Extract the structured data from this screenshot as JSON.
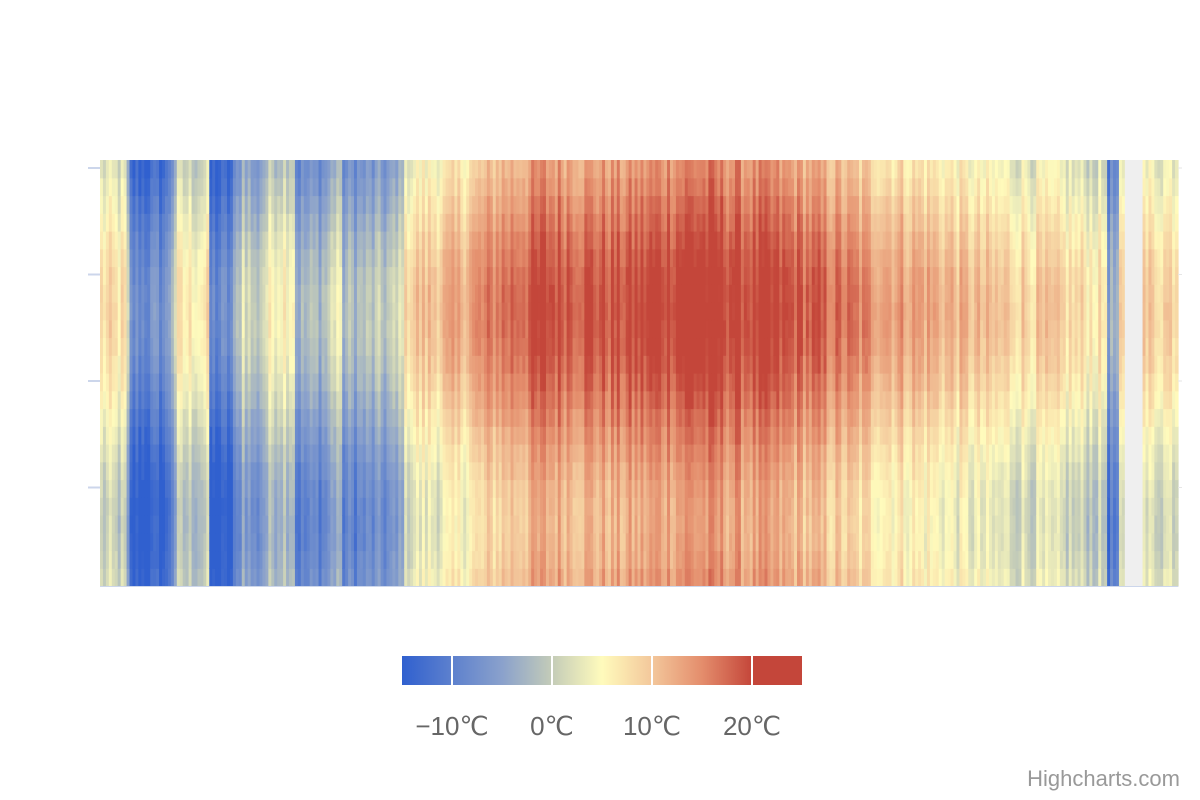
{
  "chart_data": {
    "type": "heatmap",
    "title": "",
    "xlabel": "",
    "ylabel": "",
    "x": {
      "start": 0,
      "end": 365,
      "unit": "day"
    },
    "y": {
      "start": 0,
      "end": 24,
      "unit": "hour"
    },
    "legend": {
      "position": "bottom-center",
      "tick_values": [
        -10,
        0,
        10,
        20
      ],
      "tick_labels": [
        "−10℃",
        "0℃",
        "10℃",
        "20℃"
      ],
      "min": -15,
      "max": 25
    },
    "color_stops": [
      {
        "value": -15,
        "color": "#3060cf"
      },
      {
        "value": -5,
        "color": "#8aa1cc"
      },
      {
        "value": 0,
        "color": "#c4ccb8"
      },
      {
        "value": 5,
        "color": "#fffbbc"
      },
      {
        "value": 10,
        "color": "#f3c79b"
      },
      {
        "value": 15,
        "color": "#e48d6c"
      },
      {
        "value": 20,
        "color": "#c4463a"
      },
      {
        "value": 25,
        "color": "#c4463a"
      }
    ],
    "daily_mean_profile": [
      {
        "day": 0,
        "temp": 4
      },
      {
        "day": 8,
        "temp": 3
      },
      {
        "day": 10,
        "temp": -12
      },
      {
        "day": 22,
        "temp": -11
      },
      {
        "day": 26,
        "temp": 2
      },
      {
        "day": 36,
        "temp": 3
      },
      {
        "day": 37,
        "temp": -13
      },
      {
        "day": 44,
        "temp": -12
      },
      {
        "day": 48,
        "temp": 0
      },
      {
        "day": 52,
        "temp": -5
      },
      {
        "day": 58,
        "temp": 2
      },
      {
        "day": 65,
        "temp": 3
      },
      {
        "day": 66,
        "temp": -7
      },
      {
        "day": 76,
        "temp": -5
      },
      {
        "day": 80,
        "temp": 1
      },
      {
        "day": 82,
        "temp": -6
      },
      {
        "day": 100,
        "temp": -4
      },
      {
        "day": 104,
        "temp": 6
      },
      {
        "day": 120,
        "temp": 8
      },
      {
        "day": 135,
        "temp": 13
      },
      {
        "day": 150,
        "temp": 16
      },
      {
        "day": 175,
        "temp": 15
      },
      {
        "day": 200,
        "temp": 18
      },
      {
        "day": 235,
        "temp": 15
      },
      {
        "day": 260,
        "temp": 11
      },
      {
        "day": 280,
        "temp": 9
      },
      {
        "day": 300,
        "temp": 6
      },
      {
        "day": 320,
        "temp": 5
      },
      {
        "day": 340,
        "temp": 3
      },
      {
        "day": 341,
        "temp": -8
      },
      {
        "day": 344,
        "temp": -7
      },
      {
        "day": 345,
        "temp": 3
      },
      {
        "day": 350,
        "temp": 5
      },
      {
        "day": 365,
        "temp": 6
      }
    ],
    "missing_days": [
      347,
      348,
      349,
      350,
      351,
      352
    ],
    "diurnal_amplitude": 4,
    "noise_amplitude": 3
  },
  "credits": {
    "text": "Highcharts.com"
  },
  "colors": {
    "axis_line": "#ccd6eb",
    "grid_line": "#e6e6e6",
    "missing": "#efefef",
    "label": "#666666"
  }
}
